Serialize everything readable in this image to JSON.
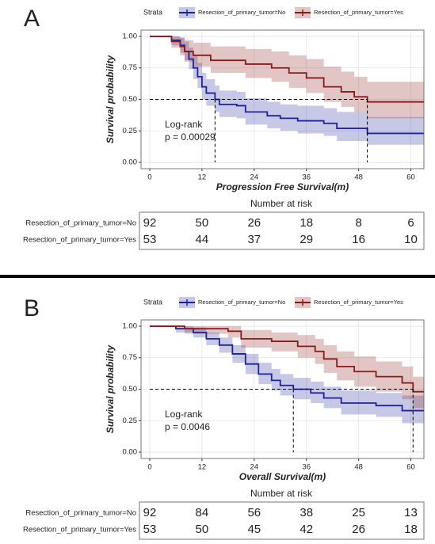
{
  "chart_data": [
    {
      "type": "survival",
      "panel": "A",
      "legend_title": "Strata",
      "x_label": "Progression Free Survival(m)",
      "y_label": "Survival probability",
      "annotations": [
        "Log-rank",
        "p = 0.00029"
      ],
      "xlim": [
        -2,
        63
      ],
      "ylim": [
        -0.05,
        1.05
      ],
      "xticks": [
        0,
        12,
        24,
        36,
        48,
        60
      ],
      "yticks": [
        {
          "value": 0,
          "label": "0.00"
        },
        {
          "value": 0.25,
          "label": "0.25"
        },
        {
          "value": 0.5,
          "label": "0.50"
        },
        {
          "value": 0.75,
          "label": "0.75"
        },
        {
          "value": 1,
          "label": "1.00"
        }
      ],
      "grid": true,
      "reference_y": 0.5,
      "series": [
        {
          "name": "Resection_of_primary_tumor=No",
          "color": "#1f239a",
          "median": 15,
          "x": [
            0,
            5,
            7,
            8,
            9,
            10,
            11,
            12,
            13,
            15,
            16,
            20,
            22,
            27,
            30,
            34,
            40,
            43,
            50,
            63
          ],
          "values": [
            1,
            0.97,
            0.93,
            0.88,
            0.82,
            0.75,
            0.68,
            0.6,
            0.55,
            0.5,
            0.46,
            0.45,
            0.4,
            0.37,
            0.35,
            0.33,
            0.31,
            0.27,
            0.23,
            0.23
          ],
          "lower": [
            1,
            0.93,
            0.87,
            0.81,
            0.74,
            0.66,
            0.59,
            0.5,
            0.45,
            0.4,
            0.36,
            0.35,
            0.3,
            0.27,
            0.25,
            0.23,
            0.21,
            0.17,
            0.14,
            0.14
          ],
          "upper": [
            1,
            1,
            0.99,
            0.96,
            0.91,
            0.85,
            0.79,
            0.71,
            0.66,
            0.61,
            0.57,
            0.56,
            0.51,
            0.48,
            0.46,
            0.45,
            0.43,
            0.4,
            0.36,
            0.36
          ]
        },
        {
          "name": "Resection_of_primary_tumor=Yes",
          "color": "#8b1a1a",
          "median": 50,
          "x": [
            0,
            4,
            5,
            7,
            8,
            10,
            14,
            22,
            28,
            32,
            36,
            40,
            44,
            47,
            50,
            63
          ],
          "values": [
            1,
            1,
            0.96,
            0.92,
            0.88,
            0.85,
            0.81,
            0.78,
            0.75,
            0.71,
            0.67,
            0.6,
            0.56,
            0.52,
            0.48,
            0.48
          ],
          "lower": [
            1,
            1,
            0.91,
            0.85,
            0.8,
            0.76,
            0.71,
            0.67,
            0.64,
            0.59,
            0.55,
            0.48,
            0.44,
            0.4,
            0.35,
            0.35
          ],
          "upper": [
            1,
            1,
            1,
            0.99,
            0.97,
            0.95,
            0.92,
            0.9,
            0.88,
            0.85,
            0.82,
            0.76,
            0.72,
            0.68,
            0.64,
            0.64
          ]
        }
      ],
      "risk_table": {
        "title": "Number at risk",
        "counts": [
          [
            92,
            50,
            26,
            18,
            8,
            6
          ],
          [
            53,
            44,
            37,
            29,
            16,
            10
          ]
        ]
      }
    },
    {
      "type": "survival",
      "panel": "B",
      "legend_title": "Strata",
      "x_label": "Overall Survival(m)",
      "y_label": "Survival probability",
      "annotations": [
        "Log-rank",
        "p = 0.0046"
      ],
      "xlim": [
        -2,
        63
      ],
      "ylim": [
        -0.05,
        1.05
      ],
      "xticks": [
        0,
        12,
        24,
        36,
        48,
        60
      ],
      "yticks": [
        {
          "value": 0,
          "label": "0.00"
        },
        {
          "value": 0.25,
          "label": "0.25"
        },
        {
          "value": 0.5,
          "label": "0.50"
        },
        {
          "value": 0.75,
          "label": "0.75"
        },
        {
          "value": 1,
          "label": "1.00"
        }
      ],
      "grid": true,
      "reference_y": 0.5,
      "series": [
        {
          "name": "Resection_of_primary_tumor=No",
          "color": "#1f239a",
          "median": 33,
          "x": [
            0,
            4,
            6,
            10,
            13,
            16,
            19,
            22,
            25,
            28,
            30,
            33,
            37,
            40,
            44,
            52,
            58,
            63
          ],
          "values": [
            1,
            1,
            0.98,
            0.95,
            0.9,
            0.85,
            0.78,
            0.7,
            0.62,
            0.57,
            0.53,
            0.5,
            0.47,
            0.43,
            0.39,
            0.37,
            0.33,
            0.33
          ],
          "lower": [
            1,
            1,
            0.95,
            0.91,
            0.85,
            0.79,
            0.71,
            0.62,
            0.54,
            0.49,
            0.45,
            0.42,
            0.39,
            0.35,
            0.3,
            0.28,
            0.23,
            0.23
          ],
          "upper": [
            1,
            1,
            1,
            0.99,
            0.95,
            0.91,
            0.85,
            0.78,
            0.71,
            0.66,
            0.62,
            0.59,
            0.56,
            0.52,
            0.49,
            0.47,
            0.45,
            0.45
          ]
        },
        {
          "name": "Resection_of_primary_tumor=Yes",
          "color": "#8b1a1a",
          "median": 60.5,
          "x": [
            0,
            5,
            8,
            18,
            21,
            28,
            34,
            38,
            40,
            43,
            47,
            52,
            58,
            60.5,
            63
          ],
          "values": [
            1,
            1,
            0.98,
            0.96,
            0.9,
            0.88,
            0.84,
            0.8,
            0.74,
            0.68,
            0.64,
            0.6,
            0.55,
            0.48,
            0.48
          ],
          "lower": [
            1,
            1,
            0.94,
            0.91,
            0.83,
            0.8,
            0.75,
            0.7,
            0.63,
            0.57,
            0.52,
            0.48,
            0.42,
            0.35,
            0.35
          ],
          "upper": [
            1,
            1,
            1,
            1,
            0.97,
            0.95,
            0.93,
            0.9,
            0.85,
            0.8,
            0.76,
            0.72,
            0.68,
            0.6,
            0.6
          ]
        }
      ],
      "risk_table": {
        "title": "Number at risk",
        "counts": [
          [
            92,
            84,
            56,
            38,
            25,
            13
          ],
          [
            53,
            50,
            45,
            42,
            26,
            18
          ]
        ]
      }
    }
  ]
}
